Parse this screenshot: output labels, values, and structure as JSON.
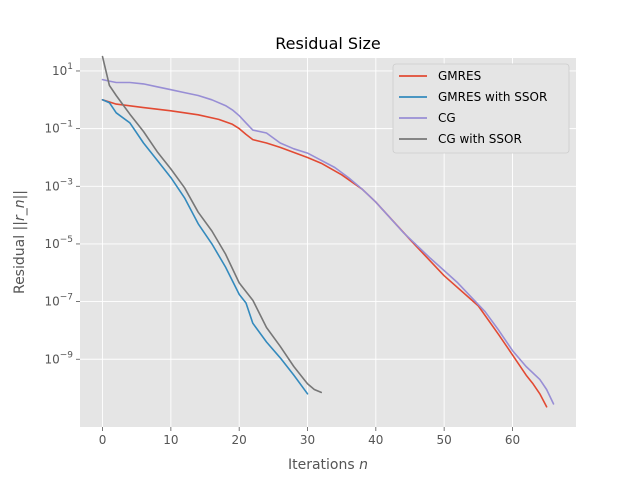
{
  "chart_data": {
    "type": "line",
    "title": "Residual Size",
    "xlabel": "Iterations n",
    "ylabel": "Residual ||r_n||",
    "yscale": "log",
    "xlim": [
      -3.3,
      69.3
    ],
    "ylim_log10": [
      -11.35,
      1.45
    ],
    "xticks": [
      0,
      10,
      20,
      30,
      40,
      50,
      60
    ],
    "yticks_exp": [
      1,
      -1,
      -3,
      -5,
      -7,
      -9
    ],
    "grid": true,
    "legend_position": "top-right",
    "series": [
      {
        "name": "GMRES",
        "color": "#e24a33",
        "x": [
          0,
          2,
          6,
          10,
          14,
          17,
          19,
          20,
          21,
          22,
          24,
          26,
          30,
          32,
          35,
          38,
          40,
          45,
          50,
          55,
          58,
          60,
          62,
          63,
          64,
          65
        ],
        "log10_y": [
          0,
          -0.15,
          -0.27,
          -0.38,
          -0.52,
          -0.68,
          -0.85,
          -1.0,
          -1.2,
          -1.38,
          -1.5,
          -1.65,
          -2.0,
          -2.2,
          -2.6,
          -3.1,
          -3.55,
          -4.85,
          -6.1,
          -7.15,
          -8.15,
          -8.85,
          -9.55,
          -9.85,
          -10.2,
          -10.65
        ]
      },
      {
        "name": "GMRES with SSOR",
        "color": "#348abd",
        "x": [
          0,
          1,
          2,
          4,
          6,
          8,
          10,
          12,
          14,
          16,
          18,
          20,
          21,
          22,
          24,
          26,
          28,
          30
        ],
        "log10_y": [
          0,
          -0.1,
          -0.45,
          -0.8,
          -1.5,
          -2.1,
          -2.7,
          -3.4,
          -4.3,
          -5.0,
          -5.8,
          -6.75,
          -7.05,
          -7.75,
          -8.4,
          -8.95,
          -9.55,
          -10.2
        ]
      },
      {
        "name": "CG",
        "color": "#988ed5",
        "x": [
          0,
          1,
          2,
          4,
          6,
          8,
          10,
          12,
          14,
          16,
          18,
          19,
          20,
          21,
          22,
          24,
          26,
          28,
          30,
          32,
          34,
          36,
          38,
          40,
          44,
          48,
          52,
          56,
          58,
          60,
          62,
          64,
          65,
          66
        ],
        "log10_y": [
          0.7,
          0.65,
          0.6,
          0.6,
          0.55,
          0.45,
          0.35,
          0.25,
          0.15,
          0.0,
          -0.2,
          -0.35,
          -0.55,
          -0.8,
          -1.05,
          -1.15,
          -1.5,
          -1.7,
          -1.85,
          -2.1,
          -2.35,
          -2.7,
          -3.1,
          -3.55,
          -4.6,
          -5.5,
          -6.35,
          -7.35,
          -8.0,
          -8.7,
          -9.25,
          -9.7,
          -10.05,
          -10.55
        ]
      },
      {
        "name": "CG with SSOR",
        "color": "#777777",
        "x": [
          0,
          1,
          2,
          4,
          6,
          8,
          10,
          12,
          14,
          16,
          18,
          20,
          22,
          24,
          26,
          28,
          30,
          31,
          32
        ],
        "log10_y": [
          1.5,
          0.5,
          0.15,
          -0.5,
          -1.1,
          -1.8,
          -2.4,
          -3.05,
          -3.9,
          -4.55,
          -5.35,
          -6.35,
          -6.95,
          -7.9,
          -8.55,
          -9.25,
          -9.85,
          -10.05,
          -10.15
        ]
      }
    ]
  }
}
